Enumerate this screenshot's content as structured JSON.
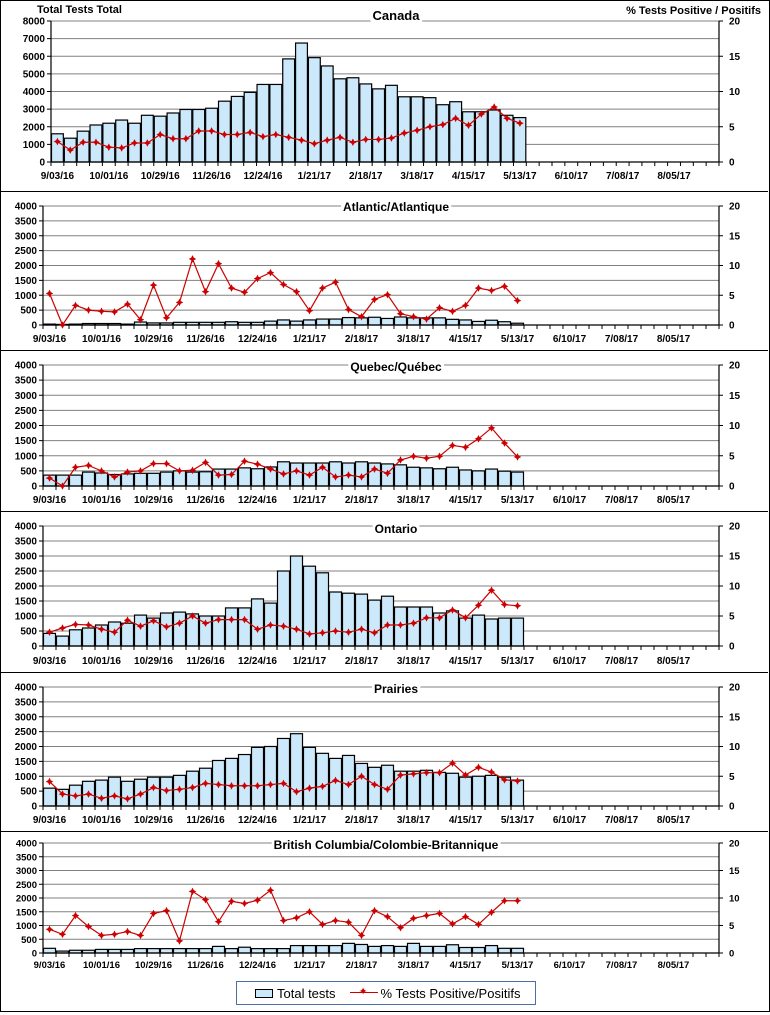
{
  "header": {
    "left_axis_title": "Total Tests Total",
    "right_axis_title": "% Tests Positive / Positifs"
  },
  "legend": {
    "bars_label": "Total tests",
    "line_label": "% Tests Positive/Positifs"
  },
  "colors": {
    "bar_fill": "#cce9fb",
    "bar_stroke": "#000000",
    "line": "#cc0000",
    "grid": "#808080"
  },
  "chart_data": [
    {
      "type": "bar",
      "title": "Canada",
      "xlabel": "",
      "ylabel": "Total Tests Total",
      "y2label": "% Tests Positive / Positifs",
      "ylim": [
        0,
        8000
      ],
      "y_ticks": [
        0,
        1000,
        2000,
        3000,
        4000,
        5000,
        6000,
        7000,
        8000
      ],
      "y2lim": [
        0,
        20
      ],
      "y2_ticks": [
        0,
        5,
        10,
        15,
        20
      ],
      "x_tick_labels": [
        "9/03/16",
        "10/01/16",
        "10/29/16",
        "11/26/16",
        "12/24/16",
        "1/21/17",
        "2/18/17",
        "3/18/17",
        "4/15/17",
        "5/13/17",
        "6/10/17",
        "7/08/17",
        "8/05/17"
      ],
      "n_weeks": 52,
      "grid": true,
      "series": [
        {
          "name": "Total tests",
          "kind": "bar",
          "axis": "left",
          "values": [
            1600,
            1350,
            1750,
            2100,
            2200,
            2380,
            2200,
            2650,
            2600,
            2780,
            2980,
            2980,
            3050,
            3450,
            3720,
            3950,
            4400,
            4400,
            5850,
            6750,
            5920,
            5450,
            4720,
            4780,
            4430,
            4150,
            4350,
            3700,
            3700,
            3650,
            3250,
            3420,
            2850,
            2850,
            2950,
            2650,
            2520
          ]
        },
        {
          "name": "% Tests Positive/Positifs",
          "kind": "line",
          "axis": "right",
          "values": [
            2.9,
            1.7,
            2.8,
            2.8,
            2.1,
            2.0,
            2.7,
            2.7,
            3.9,
            3.3,
            3.3,
            4.4,
            4.4,
            3.9,
            3.9,
            4.2,
            3.6,
            3.9,
            3.5,
            3.1,
            2.6,
            3.1,
            3.5,
            2.8,
            3.2,
            3.2,
            3.4,
            4.1,
            4.5,
            5.0,
            5.3,
            6.2,
            5.2,
            6.8,
            7.8,
            6.2,
            5.5
          ]
        }
      ]
    },
    {
      "type": "bar",
      "title": "Atlantic/Atlantique",
      "xlabel": "",
      "ylabel": "",
      "ylim": [
        0,
        4000
      ],
      "y_ticks": [
        0,
        500,
        1000,
        1500,
        2000,
        2500,
        3000,
        3500,
        4000
      ],
      "y2lim": [
        0,
        20
      ],
      "y2_ticks": [
        0,
        5,
        10,
        15,
        20
      ],
      "x_tick_labels": [
        "9/03/16",
        "10/01/16",
        "10/29/16",
        "11/26/16",
        "12/24/16",
        "1/21/17",
        "2/18/17",
        "3/18/17",
        "4/15/17",
        "5/13/17",
        "6/10/17",
        "7/08/17",
        "8/05/17"
      ],
      "n_weeks": 52,
      "grid": true,
      "series": [
        {
          "name": "Total tests",
          "kind": "bar",
          "axis": "left",
          "values": [
            30,
            20,
            30,
            50,
            50,
            50,
            30,
            100,
            70,
            70,
            90,
            90,
            90,
            90,
            110,
            90,
            90,
            130,
            170,
            130,
            170,
            200,
            200,
            250,
            240,
            260,
            220,
            270,
            240,
            240,
            240,
            190,
            170,
            120,
            160,
            110,
            60
          ]
        },
        {
          "name": "% Tests Positive/Positifs",
          "kind": "line",
          "axis": "right",
          "values": [
            5.3,
            0,
            3.3,
            2.5,
            2.3,
            2.2,
            3.5,
            0.9,
            6.7,
            1.2,
            3.8,
            11.1,
            5.6,
            10.3,
            6.2,
            5.5,
            7.8,
            8.8,
            6.8,
            5.6,
            2.4,
            6.2,
            7.2,
            2.6,
            1.4,
            4.3,
            5.1,
            1.9,
            1.4,
            1.0,
            2.9,
            2.3,
            3.3,
            6.2,
            5.8,
            6.5,
            4.1
          ]
        }
      ]
    },
    {
      "type": "bar",
      "title": "Quebec/Québec",
      "xlabel": "",
      "ylabel": "",
      "ylim": [
        0,
        4000
      ],
      "y_ticks": [
        0,
        500,
        1000,
        1500,
        2000,
        2500,
        3000,
        3500,
        4000
      ],
      "y2lim": [
        0,
        20
      ],
      "y2_ticks": [
        0,
        5,
        10,
        15,
        20
      ],
      "x_tick_labels": [
        "9/03/16",
        "10/01/16",
        "10/29/16",
        "11/26/16",
        "12/24/16",
        "1/21/17",
        "2/18/17",
        "3/18/17",
        "4/15/17",
        "5/13/17",
        "6/10/17",
        "7/08/17",
        "8/05/17"
      ],
      "n_weeks": 52,
      "grid": true,
      "series": [
        {
          "name": "Total tests",
          "kind": "bar",
          "axis": "left",
          "values": [
            360,
            360,
            360,
            460,
            430,
            380,
            400,
            420,
            420,
            460,
            500,
            460,
            470,
            560,
            560,
            600,
            570,
            630,
            800,
            760,
            760,
            760,
            800,
            760,
            800,
            760,
            730,
            700,
            620,
            600,
            570,
            620,
            530,
            500,
            560,
            490,
            460
          ]
        },
        {
          "name": "% Tests Positive/Positifs",
          "kind": "line",
          "axis": "right",
          "values": [
            1.3,
            0,
            3.1,
            3.4,
            2.5,
            1.5,
            2.3,
            2.5,
            3.7,
            3.7,
            2.5,
            2.6,
            3.9,
            1.8,
            1.9,
            4.1,
            3.6,
            2.8,
            2.0,
            2.5,
            1.8,
            3.1,
            1.5,
            1.8,
            1.5,
            2.8,
            2.1,
            4.3,
            4.9,
            4.6,
            4.9,
            6.7,
            6.4,
            7.8,
            9.6,
            7.1,
            4.8
          ]
        }
      ]
    },
    {
      "type": "bar",
      "title": "Ontario",
      "xlabel": "",
      "ylabel": "",
      "ylim": [
        0,
        4000
      ],
      "y_ticks": [
        0,
        500,
        1000,
        1500,
        2000,
        2500,
        3000,
        3500,
        4000
      ],
      "y2lim": [
        0,
        20
      ],
      "y2_ticks": [
        0,
        5,
        10,
        15,
        20
      ],
      "x_tick_labels": [
        "9/03/16",
        "10/01/16",
        "10/29/16",
        "11/26/16",
        "12/24/16",
        "1/21/17",
        "2/18/17",
        "3/18/17",
        "4/15/17",
        "5/13/17",
        "6/10/17",
        "7/08/17",
        "8/05/17"
      ],
      "n_weeks": 52,
      "grid": true,
      "series": [
        {
          "name": "Total tests",
          "kind": "bar",
          "axis": "left",
          "values": [
            420,
            330,
            540,
            600,
            700,
            800,
            760,
            1030,
            930,
            1100,
            1130,
            1070,
            1000,
            1000,
            1270,
            1270,
            1570,
            1430,
            2500,
            3000,
            2660,
            2440,
            1800,
            1760,
            1730,
            1530,
            1660,
            1300,
            1300,
            1300,
            1100,
            1170,
            930,
            1030,
            900,
            930,
            930
          ]
        },
        {
          "name": "% Tests Positive/Positifs",
          "kind": "line",
          "axis": "right",
          "values": [
            2.3,
            3.0,
            3.6,
            3.5,
            2.8,
            2.3,
            4.3,
            3.3,
            4.2,
            3.2,
            3.8,
            5.0,
            3.8,
            4.4,
            4.4,
            4.4,
            2.8,
            3.5,
            3.3,
            2.8,
            2.0,
            2.2,
            2.5,
            2.3,
            2.8,
            2.2,
            3.5,
            3.5,
            3.8,
            4.7,
            4.7,
            6.0,
            4.7,
            6.8,
            9.3,
            6.9,
            6.7
          ]
        }
      ]
    },
    {
      "type": "bar",
      "title": "Prairies",
      "xlabel": "",
      "ylabel": "",
      "ylim": [
        0,
        4000
      ],
      "y_ticks": [
        0,
        500,
        1000,
        1500,
        2000,
        2500,
        3000,
        3500,
        4000
      ],
      "y2lim": [
        0,
        20
      ],
      "y2_ticks": [
        0,
        5,
        10,
        15,
        20
      ],
      "x_tick_labels": [
        "9/03/16",
        "10/01/16",
        "10/29/16",
        "11/26/16",
        "12/24/16",
        "1/21/17",
        "2/18/17",
        "3/18/17",
        "4/15/17",
        "5/13/17",
        "6/10/17",
        "7/08/17",
        "8/05/17"
      ],
      "n_weeks": 52,
      "grid": true,
      "series": [
        {
          "name": "Total tests",
          "kind": "bar",
          "axis": "left",
          "values": [
            600,
            560,
            700,
            830,
            870,
            970,
            830,
            900,
            970,
            970,
            1030,
            1170,
            1270,
            1530,
            1600,
            1730,
            1970,
            2000,
            2270,
            2430,
            1970,
            1770,
            1600,
            1700,
            1430,
            1300,
            1370,
            1170,
            1170,
            1200,
            1130,
            1100,
            970,
            1000,
            1030,
            970,
            870
          ]
        },
        {
          "name": "% Tests Positive/Positifs",
          "kind": "line",
          "axis": "right",
          "values": [
            4.1,
            2.0,
            1.7,
            2.0,
            1.3,
            1.7,
            1.2,
            2.0,
            3.1,
            2.6,
            2.8,
            3.1,
            3.8,
            3.6,
            3.4,
            3.4,
            3.4,
            3.6,
            3.8,
            2.4,
            3.0,
            3.3,
            4.3,
            3.6,
            5.0,
            3.6,
            2.8,
            5.2,
            5.4,
            5.6,
            5.6,
            7.2,
            5.2,
            6.5,
            5.7,
            4.4,
            4.2
          ]
        }
      ]
    },
    {
      "type": "bar",
      "title": "British Columbia/Colombie-Britannique",
      "xlabel": "",
      "ylabel": "",
      "ylim": [
        0,
        4000
      ],
      "y_ticks": [
        0,
        500,
        1000,
        1500,
        2000,
        2500,
        3000,
        3500,
        4000
      ],
      "y2lim": [
        0,
        20
      ],
      "y2_ticks": [
        0,
        5,
        10,
        15,
        20
      ],
      "x_tick_labels": [
        "9/03/16",
        "10/01/16",
        "10/29/16",
        "11/26/16",
        "12/24/16",
        "1/21/17",
        "2/18/17",
        "3/18/17",
        "4/15/17",
        "5/13/17",
        "6/10/17",
        "7/08/17",
        "8/05/17"
      ],
      "n_weeks": 52,
      "grid": true,
      "legend_position": "bottom",
      "series": [
        {
          "name": "Total tests",
          "kind": "bar",
          "axis": "left",
          "values": [
            170,
            70,
            100,
            100,
            130,
            130,
            130,
            160,
            160,
            160,
            160,
            160,
            160,
            240,
            160,
            210,
            160,
            160,
            160,
            270,
            270,
            270,
            270,
            350,
            310,
            240,
            270,
            240,
            350,
            240,
            240,
            300,
            200,
            200,
            270,
            170,
            170
          ]
        },
        {
          "name": "% Tests Positive/Positifs",
          "kind": "line",
          "axis": "right",
          "values": [
            4.3,
            3.4,
            6.8,
            4.8,
            3.2,
            3.4,
            3.9,
            3.2,
            7.2,
            7.7,
            2.2,
            11.2,
            9.7,
            5.7,
            9.4,
            9.0,
            9.6,
            11.4,
            5.9,
            6.4,
            7.5,
            5.2,
            5.9,
            5.6,
            3.2,
            7.7,
            6.6,
            4.6,
            6.3,
            6.8,
            7.2,
            5.3,
            6.6,
            5.2,
            7.4,
            9.5,
            9.5
          ]
        }
      ]
    }
  ]
}
